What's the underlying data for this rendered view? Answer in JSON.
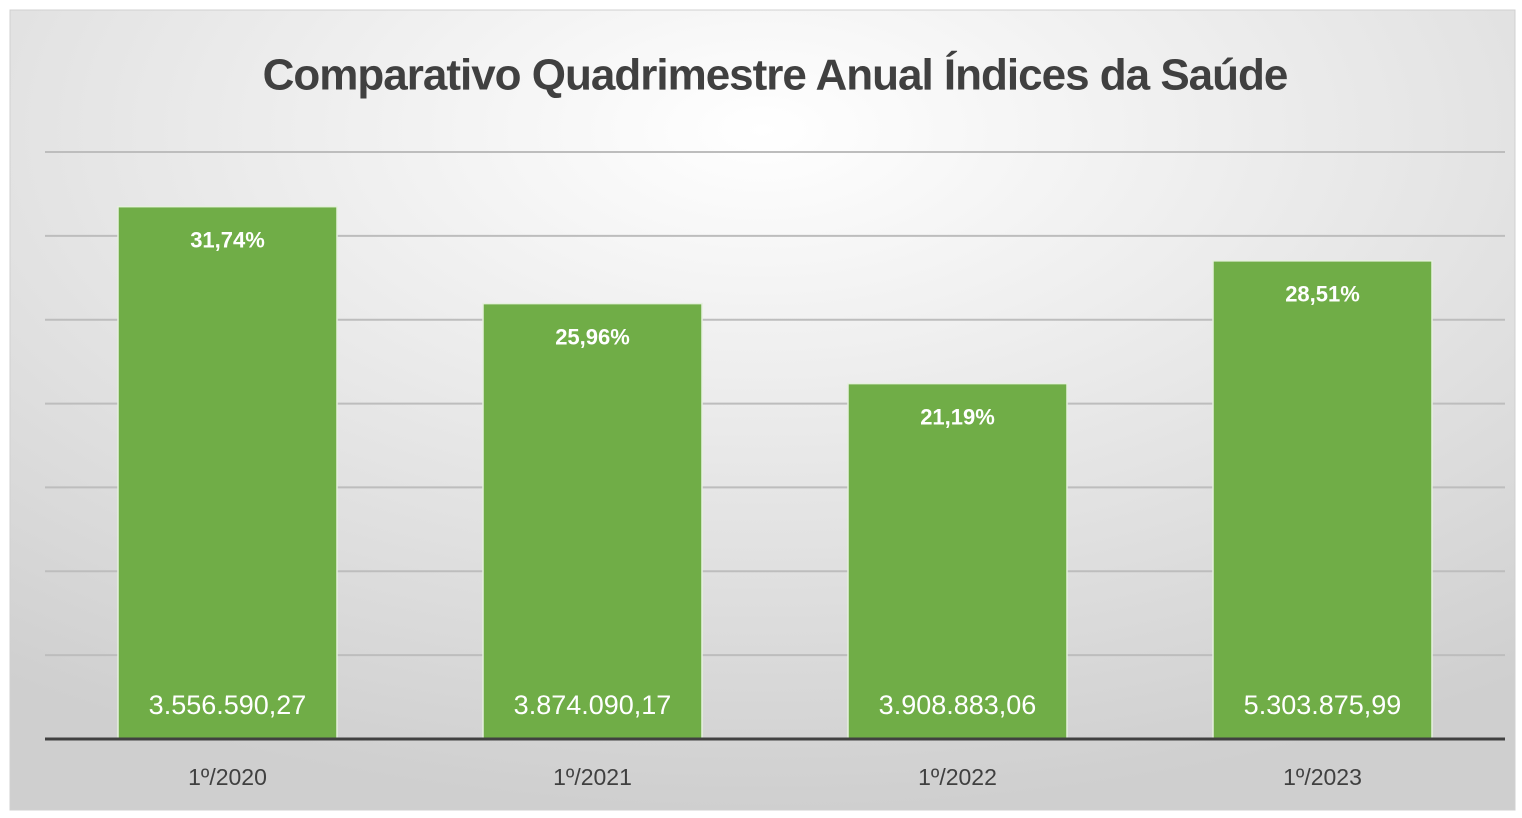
{
  "chart_data": {
    "type": "bar",
    "title": "Comparativo Quadrimestre Anual Índices da Saúde",
    "categories": [
      "1º/2020",
      "1º/2021",
      "1º/2022",
      "1º/2023"
    ],
    "values": [
      31.74,
      25.96,
      21.19,
      28.51
    ],
    "value_labels": [
      "31,74%",
      "25,96%",
      "21,19%",
      "28,51%"
    ],
    "amounts": [
      3556590.27,
      3874090.17,
      3908883.06,
      5303875.99
    ],
    "amount_labels": [
      "3.556.590,27",
      "3.874.090,17",
      "3.908.883,06",
      "5.303.875,99"
    ],
    "color": "#70ad47",
    "ylim": [
      0,
      35
    ],
    "yticks": [
      0,
      5,
      10,
      15,
      20,
      25,
      30,
      35
    ],
    "grid": true
  }
}
